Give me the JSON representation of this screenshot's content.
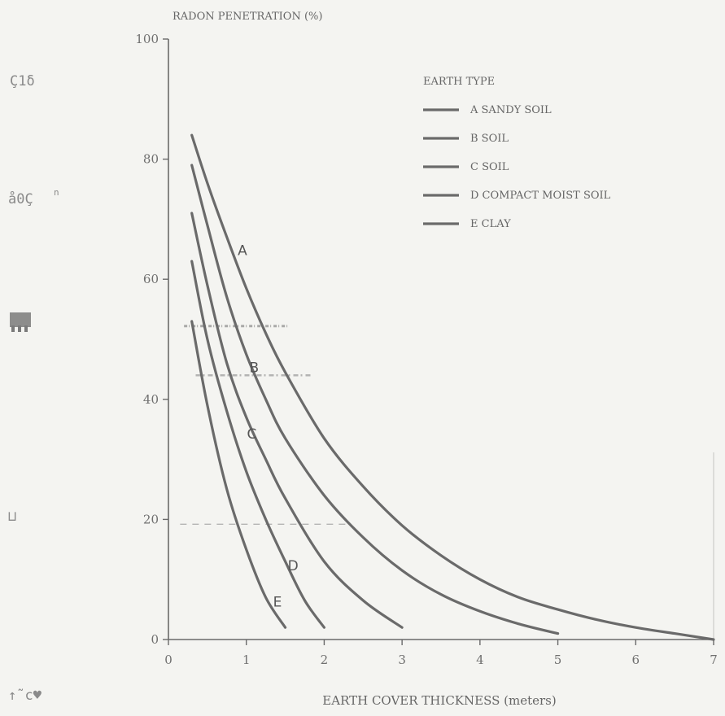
{
  "chart_data": {
    "type": "line",
    "title": "",
    "ylabel": "RADON PENETRATION (%)",
    "xlabel": "EARTH COVER THICKNESS (meters)",
    "xlim": [
      0,
      7
    ],
    "ylim": [
      0,
      100
    ],
    "x_ticks": [
      0,
      1,
      2,
      3,
      4,
      5,
      6,
      7
    ],
    "y_ticks": [
      0,
      20,
      40,
      60,
      80,
      100
    ],
    "grid": false,
    "legend": {
      "title": "EARTH TYPE",
      "placement": "top-right",
      "entries": [
        "A SANDY SOIL",
        "B SOIL",
        "C SOIL",
        "D COMPACT MOIST SOIL",
        "E CLAY"
      ]
    },
    "series": [
      {
        "label": "A",
        "x": [
          0.3,
          0.5,
          0.75,
          1.0,
          1.25,
          1.5,
          2.0,
          2.5,
          3.0,
          3.5,
          4.0,
          4.5,
          5.0,
          5.5,
          6.0,
          6.5,
          7.0
        ],
        "y": [
          84,
          76,
          67,
          58.5,
          51,
          44.5,
          33.5,
          25.5,
          19,
          14,
          10,
          7,
          5,
          3.3,
          2,
          1,
          0
        ]
      },
      {
        "label": "B",
        "x": [
          0.3,
          0.5,
          0.75,
          1.0,
          1.25,
          1.5,
          2.0,
          2.5,
          3.0,
          3.5,
          4.0,
          4.5,
          5.0
        ],
        "y": [
          79,
          69,
          57,
          47.5,
          40,
          33.5,
          24,
          17,
          11.5,
          7.5,
          4.7,
          2.6,
          1
        ]
      },
      {
        "label": "C",
        "x": [
          0.3,
          0.5,
          0.75,
          1.0,
          1.25,
          1.5,
          2.0,
          2.5,
          3.0
        ],
        "y": [
          71,
          59,
          46,
          37,
          30,
          23.5,
          13,
          6.5,
          2
        ]
      },
      {
        "label": "D",
        "x": [
          0.3,
          0.5,
          0.75,
          1.0,
          1.25,
          1.5,
          1.75,
          2.0
        ],
        "y": [
          63,
          50,
          38,
          28,
          20,
          13,
          6.5,
          2
        ]
      },
      {
        "label": "E",
        "x": [
          0.3,
          0.5,
          0.75,
          1.0,
          1.25,
          1.5
        ],
        "y": [
          53,
          39,
          25,
          15,
          7,
          2
        ]
      }
    ],
    "curve_labels": [
      {
        "text": "A",
        "x": 0.95,
        "y": 64
      },
      {
        "text": "B",
        "x": 1.1,
        "y": 44.5
      },
      {
        "text": "C",
        "x": 1.07,
        "y": 33.5
      },
      {
        "text": "D",
        "x": 1.6,
        "y": 11.5
      },
      {
        "text": "E",
        "x": 1.4,
        "y": 5.5
      }
    ]
  },
  "margin_marks": [
    "Ç1δ",
    "å0Ç",
    "n",
    "⊔",
    "↑˜c♥"
  ],
  "colors": {
    "curve": "#6a6a6a",
    "axis": "#6a6a6a",
    "background": "#f4f4f1"
  }
}
